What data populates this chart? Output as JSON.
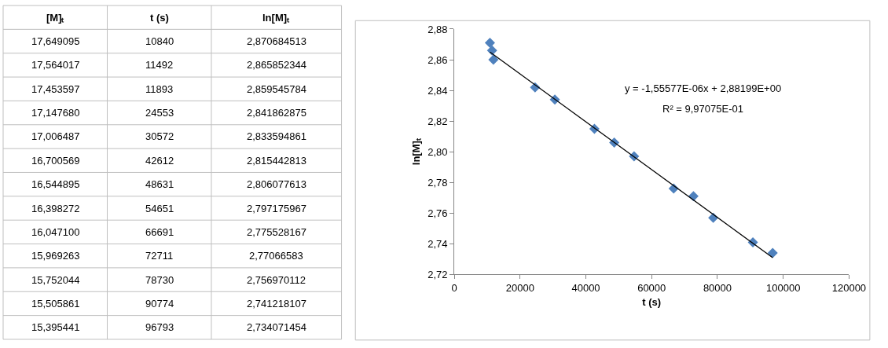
{
  "chart_data": [
    {
      "type": "other",
      "categories": [
        "[M]ₜ",
        "t (s)",
        "ln[M]ₜ"
      ],
      "annotations": [
        "17,649095",
        "10840",
        "2,870684513",
        "17,564017",
        "11492",
        "2,865852344",
        "17,453597",
        "11893",
        "2,859545784",
        "17,147680",
        "24553",
        "2,841862875",
        "17,006487",
        "30572",
        "2,833594861",
        "16,700569",
        "42612",
        "2,815442813",
        "16,544895",
        "48631",
        "2,806077613",
        "16,398272",
        "54651",
        "2,797175967",
        "16,047100",
        "66691",
        "2,775528167",
        "15,969263",
        "72711",
        "2,77066583",
        "15,752044",
        "78730",
        "2,756970112",
        "15,505861",
        "90774",
        "2,741218107",
        "15,395441",
        "96793",
        "2,734071454"
      ]
    },
    {
      "type": "scatter",
      "xlabel": "t (s)",
      "ylabel": "ln[M]ₜ",
      "grid": false,
      "xlim": [
        0,
        120000
      ],
      "xticks": [
        0,
        20000,
        40000,
        60000,
        80000,
        100000,
        120000
      ],
      "ylim": [
        2.72,
        2.88
      ],
      "yticks": [
        {
          "value": 2.72,
          "label": "2,72"
        },
        {
          "value": 2.74,
          "label": "2,74"
        },
        {
          "value": 2.76,
          "label": "2,76"
        },
        {
          "value": 2.78,
          "label": "2,78"
        },
        {
          "value": 2.8,
          "label": "2,80"
        },
        {
          "value": 2.82,
          "label": "2,82"
        },
        {
          "value": 2.84,
          "label": "2,84"
        },
        {
          "value": 2.86,
          "label": "2,86"
        },
        {
          "value": 2.88,
          "label": "2,88"
        }
      ],
      "series": [
        {
          "type": "scatter",
          "marker": "diamond",
          "color": "#4f81bd",
          "x": [
            10840,
            11492,
            11893,
            24553,
            30572,
            42612,
            48631,
            54651,
            66691,
            72711,
            78730,
            90774,
            96793
          ],
          "values": [
            2.871,
            2.866,
            2.86,
            2.842,
            2.834,
            2.815,
            2.806,
            2.797,
            2.776,
            2.771,
            2.757,
            2.741,
            2.734
          ]
        },
        {
          "type": "line",
          "marker": "none",
          "color": "#000000",
          "line_style": "solid",
          "x": [
            10840,
            96793
          ],
          "values": [
            2.865,
            2.731
          ]
        }
      ],
      "annotations": [
        "y = -1,55577E-06x + 2,88199E+00",
        "R² = 9,97075E-01"
      ]
    }
  ]
}
